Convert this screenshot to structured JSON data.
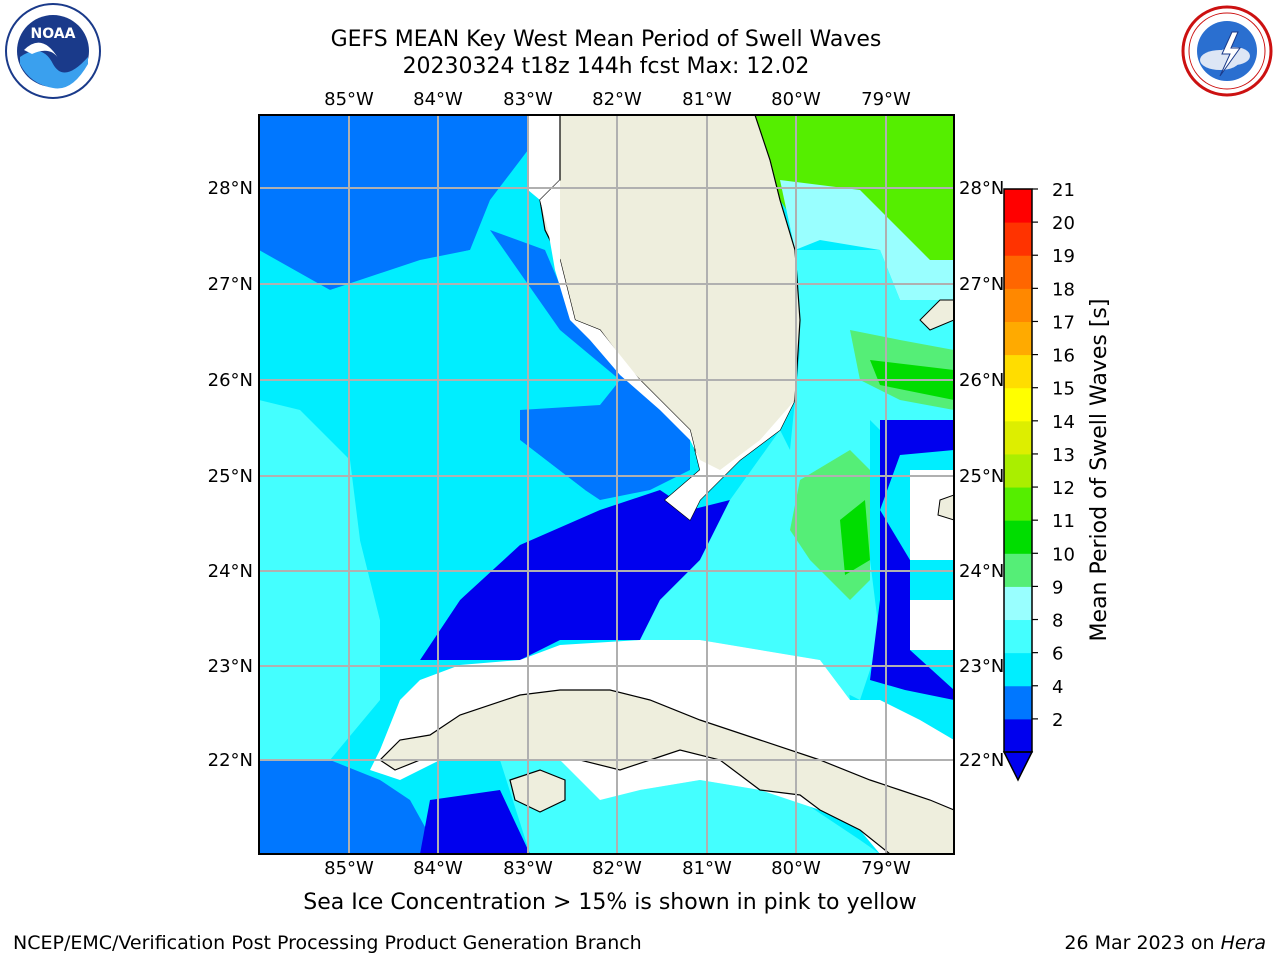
{
  "header": {
    "title_line1": "GEFS MEAN Key West Mean Period of Swell Waves",
    "title_line2": "20230324 t18z 144h fcst   Max: 12.02"
  },
  "logos": {
    "left": "noaa-logo",
    "left_text": "NOAA",
    "right": "nws-logo"
  },
  "map": {
    "lon_labels": [
      "85°W",
      "84°W",
      "83°W",
      "82°W",
      "81°W",
      "80°W",
      "79°W"
    ],
    "lat_labels": [
      "28°N",
      "27°N",
      "26°N",
      "25°N",
      "24°N",
      "23°N",
      "22°N"
    ],
    "lon_range": [
      -86,
      -78.25
    ],
    "lat_range": [
      21.1,
      28.75
    ],
    "grid": true,
    "land_color": "#eeeedd",
    "no_data_color": "#ffffff"
  },
  "colorbar": {
    "label": "Mean Period of Swell Waves [s]",
    "ticks": [
      "21",
      "20",
      "19",
      "18",
      "17",
      "16",
      "15",
      "14",
      "13",
      "12",
      "11",
      "10",
      "9",
      "8",
      "6",
      "4",
      "2"
    ],
    "bins": [
      {
        "from": 2,
        "to": 4,
        "color": "#0000ee"
      },
      {
        "from": 4,
        "to": 6,
        "color": "#0077ff"
      },
      {
        "from": 6,
        "to": 8,
        "color": "#00eeff"
      },
      {
        "from": 8,
        "to": 9,
        "color": "#44ffff"
      },
      {
        "from": 9,
        "to": 10,
        "color": "#99ffff"
      },
      {
        "from": 10,
        "to": 11,
        "color": "#55ee77"
      },
      {
        "from": 11,
        "to": 12,
        "color": "#00dd00"
      },
      {
        "from": 12,
        "to": 13,
        "color": "#55ee00"
      },
      {
        "from": 13,
        "to": 14,
        "color": "#aaee00"
      },
      {
        "from": 14,
        "to": 15,
        "color": "#ddee00"
      },
      {
        "from": 15,
        "to": 16,
        "color": "#ffff00"
      },
      {
        "from": 16,
        "to": 17,
        "color": "#ffdd00"
      },
      {
        "from": 17,
        "to": 18,
        "color": "#ffaa00"
      },
      {
        "from": 18,
        "to": 19,
        "color": "#ff8800"
      },
      {
        "from": 19,
        "to": 20,
        "color": "#ff6600"
      },
      {
        "from": 20,
        "to": 21,
        "color": "#ff3300"
      },
      {
        "from": 21,
        "to": 22,
        "color": "#ff0000"
      }
    ],
    "underflow_color": "#0000ee"
  },
  "note": "Sea Ice Concentration > 15% is shown in pink to yellow",
  "footer": {
    "left": "NCEP/EMC/Verification Post Processing Product Generation Branch",
    "right_prefix": "26 Mar 2023 on ",
    "right_host": "Hera"
  }
}
